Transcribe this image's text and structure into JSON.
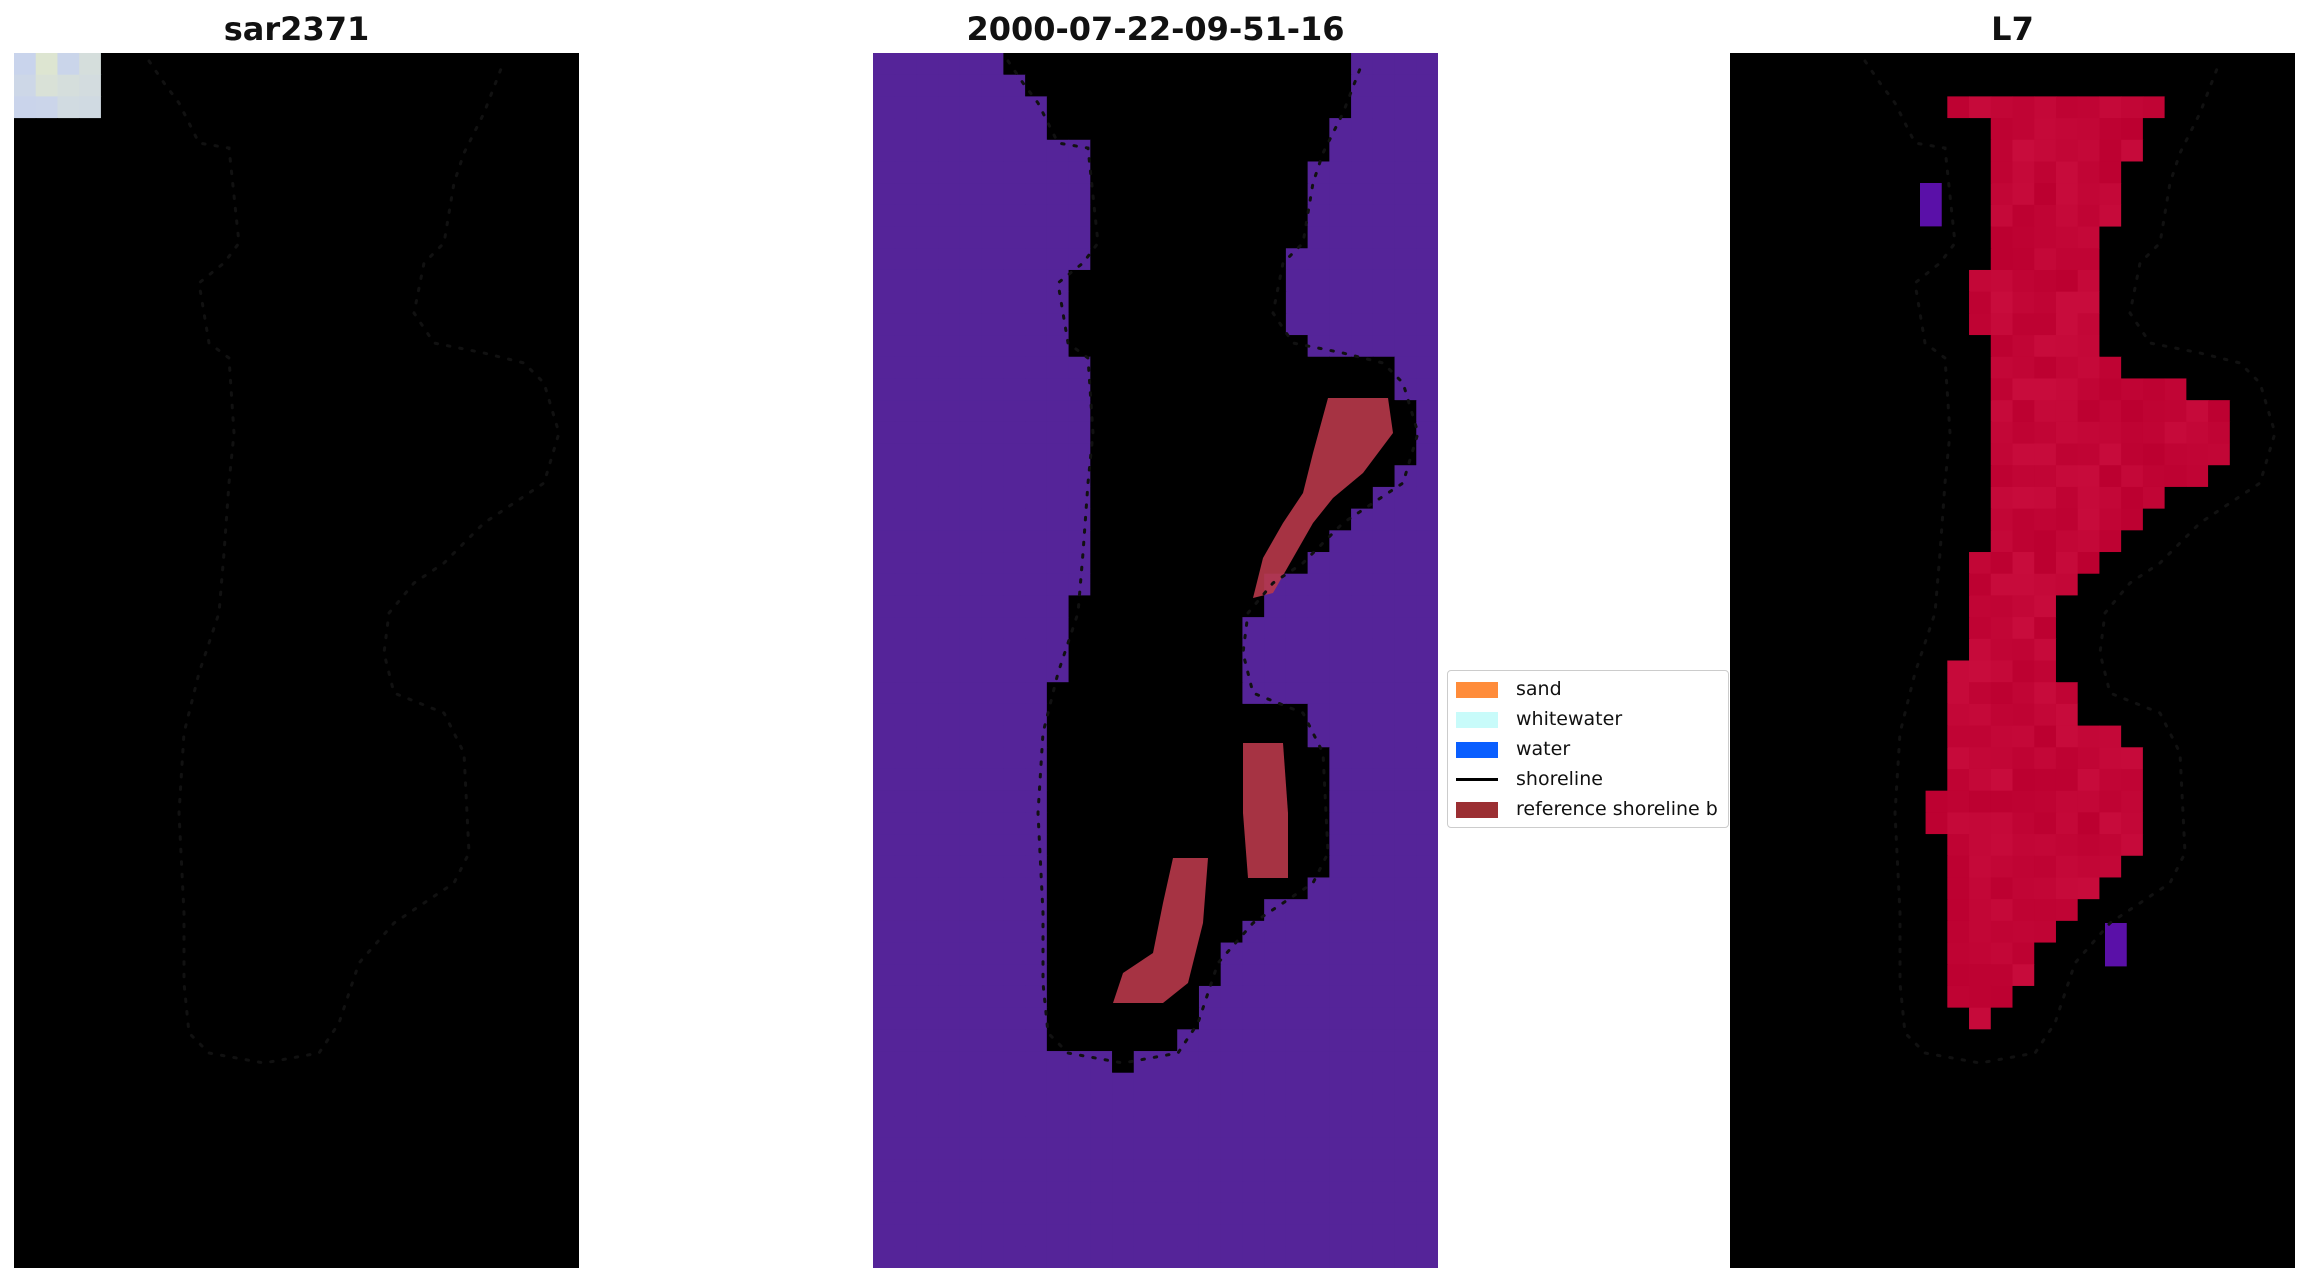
{
  "panels": [
    {
      "title": "sar2371",
      "style": "rgb",
      "colors": {
        "water": "#2f5fb0",
        "water_light": "#3b74c4",
        "land": "#c9d4ec",
        "land_bright": "#f4f2f8"
      }
    },
    {
      "title": "2000-07-22-09-51-16",
      "style": "classified",
      "colors": {
        "background": "#552499",
        "land": "#9a4a8c",
        "land_light": "#b05a98",
        "reference": "#b8394a"
      }
    },
    {
      "title": "L7",
      "style": "index",
      "colors": {
        "background": "#a64ba0",
        "land_core": "#c20636",
        "land_edge": "#d02a55",
        "dark_spot": "#5a10a8"
      }
    }
  ],
  "legend": {
    "items": [
      {
        "label": "sand",
        "color": "#ff8c3a",
        "kind": "patch"
      },
      {
        "label": "whitewater",
        "color": "#c8fbfa",
        "kind": "patch"
      },
      {
        "label": "water",
        "color": "#0a5fff",
        "kind": "patch"
      },
      {
        "label": "shoreline",
        "color": "#000000",
        "kind": "line"
      },
      {
        "label": "reference shoreline b",
        "color": "#9b2f33",
        "kind": "patch"
      }
    ]
  },
  "shoreline_color": "#111111"
}
